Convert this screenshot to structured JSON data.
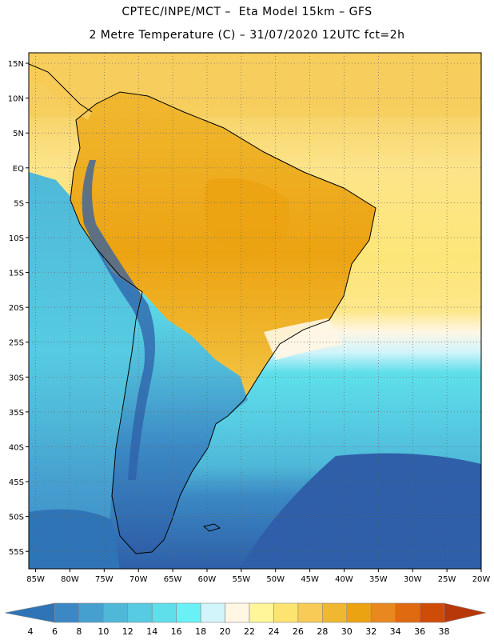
{
  "header": {
    "line1": "CPTEC/INPE/MCT –  Eta Model 15km – GFS",
    "line2": "2 Metre Temperature (C) – 31/07/2020 12UTC fct=2h"
  },
  "map": {
    "lat_labels": [
      "15N",
      "10N",
      "5N",
      "EQ",
      "5S",
      "10S",
      "15S",
      "20S",
      "25S",
      "30S",
      "35S",
      "40S",
      "45S",
      "50S",
      "55S"
    ],
    "lon_labels": [
      "85W",
      "80W",
      "75W",
      "70W",
      "65W",
      "60W",
      "55W",
      "50W",
      "45W",
      "40W",
      "35W",
      "30W",
      "25W",
      "20W"
    ],
    "lat_range": [
      -57.5,
      16.5
    ],
    "lon_range": [
      -86,
      -20
    ]
  },
  "colorbar": {
    "labels": [
      "4",
      "6",
      "8",
      "10",
      "12",
      "14",
      "16",
      "18",
      "20",
      "22",
      "24",
      "26",
      "28",
      "30",
      "32",
      "34",
      "36",
      "38"
    ],
    "colors": [
      "#2e74b6",
      "#3b88c4",
      "#46a0cf",
      "#4fb8d8",
      "#56cbe2",
      "#5edfea",
      "#69f1f6",
      "#d2f4fb",
      "#fff6e4",
      "#fff599",
      "#fde471",
      "#f7cb55",
      "#f0b830",
      "#eca312",
      "#e8881e",
      "#df6a10",
      "#cf4b08",
      "#b8380a"
    ]
  }
}
